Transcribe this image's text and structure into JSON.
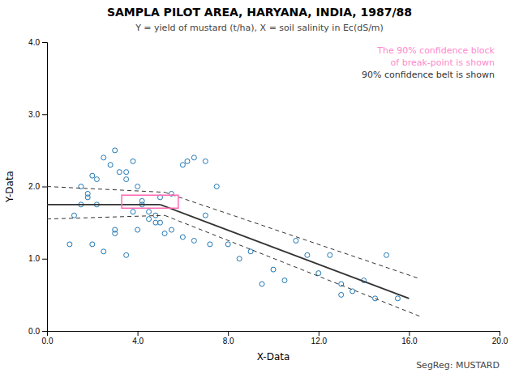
{
  "chart_data": {
    "type": "scatter",
    "title": "SAMPLA PILOT AREA, HARYANA, INDIA, 1987/88",
    "subtitle": "Y = yield of mustard (t/ha), X = soil salinity in Ec(dS/m)",
    "x_label": "X-Data",
    "y_label": "Y-Data",
    "annotations": [
      {
        "text": "The 90% confidence block",
        "color": "#FF88CC"
      },
      {
        "text": "of break-point is shown",
        "color": "#FF88CC"
      },
      {
        "text": "90% confidence belt is shown"
      }
    ],
    "note": "SegReg: MUSTARD",
    "xlim": [
      0.0,
      20.0
    ],
    "ylim": [
      0.0,
      4.0
    ],
    "xticks": [
      {
        "value": 0.0,
        "label": "0.0"
      },
      {
        "value": 4.0,
        "label": "4.0"
      },
      {
        "value": 8.0,
        "label": "8.0"
      },
      {
        "value": 12.0,
        "label": "12.0"
      },
      {
        "value": 16.0,
        "label": "16.0"
      },
      {
        "value": 20.0,
        "label": "20.0"
      }
    ],
    "yticks": [
      {
        "value": 0.0,
        "label": "0.0"
      },
      {
        "value": 1.0,
        "label": "1.0"
      },
      {
        "value": 2.0,
        "label": "2.0"
      },
      {
        "value": 3.0,
        "label": "3.0"
      },
      {
        "value": 4.0,
        "label": "4.0"
      }
    ],
    "grid": false,
    "series": [
      {
        "type": "scatter",
        "marker": "open-circle",
        "x": [
          1.2,
          1.5,
          1.8,
          2.2,
          2.5,
          2.8,
          3.0,
          3.2,
          3.5,
          3.8,
          4.0,
          4.2,
          4.5,
          4.8,
          5.5,
          6.0,
          6.2,
          6.5,
          7.0,
          7.5,
          1.0,
          1.5,
          2.0,
          2.5,
          3.0,
          3.5,
          4.0,
          4.5,
          5.0,
          5.5,
          6.5,
          7.0,
          8.0,
          9.0,
          10.0,
          11.0,
          12.0,
          12.5,
          13.0,
          13.5,
          14.0,
          15.0,
          15.5,
          1.8,
          2.0,
          2.2,
          3.0,
          3.5,
          3.8,
          4.2,
          4.8,
          5.0,
          5.2,
          6.0,
          7.2,
          8.5,
          9.5,
          10.5,
          11.5,
          13.0,
          14.5
        ],
        "values": [
          1.6,
          2.0,
          1.85,
          2.1,
          2.4,
          2.3,
          2.5,
          2.2,
          2.1,
          2.35,
          2.0,
          1.75,
          1.65,
          1.6,
          1.9,
          2.3,
          2.35,
          2.4,
          2.35,
          2.0,
          1.2,
          1.75,
          1.2,
          1.1,
          1.35,
          1.05,
          1.4,
          1.55,
          1.5,
          1.4,
          1.25,
          1.6,
          1.2,
          1.1,
          0.85,
          1.25,
          0.8,
          1.05,
          0.65,
          0.55,
          0.7,
          1.05,
          0.45,
          1.9,
          2.15,
          1.75,
          1.4,
          2.2,
          1.65,
          1.8,
          1.5,
          1.85,
          1.35,
          1.3,
          1.2,
          1.0,
          0.65,
          0.7,
          1.05,
          0.5,
          0.45
        ]
      },
      {
        "type": "line",
        "line_style": "solid",
        "x": [
          0.0,
          5.0
        ],
        "values": [
          1.75,
          1.75
        ]
      },
      {
        "type": "line",
        "line_style": "solid",
        "x": [
          5.0,
          16.0
        ],
        "values": [
          1.75,
          0.45
        ]
      },
      {
        "type": "line",
        "line_style": "dashed",
        "x": [
          0.0,
          5.2
        ],
        "values": [
          2.0,
          1.92
        ]
      },
      {
        "type": "line",
        "line_style": "dashed",
        "x": [
          0.0,
          5.2
        ],
        "values": [
          1.55,
          1.6
        ]
      },
      {
        "type": "line",
        "line_style": "dashed",
        "x": [
          5.2,
          16.5
        ],
        "values": [
          1.92,
          0.72
        ]
      },
      {
        "type": "line",
        "line_style": "dashed",
        "x": [
          5.2,
          16.5
        ],
        "values": [
          1.6,
          0.2
        ]
      }
    ],
    "confidence_block": {
      "x": 3.3,
      "y": 1.7,
      "width": 2.5,
      "height": 0.18,
      "color": "#FF69B4"
    }
  }
}
